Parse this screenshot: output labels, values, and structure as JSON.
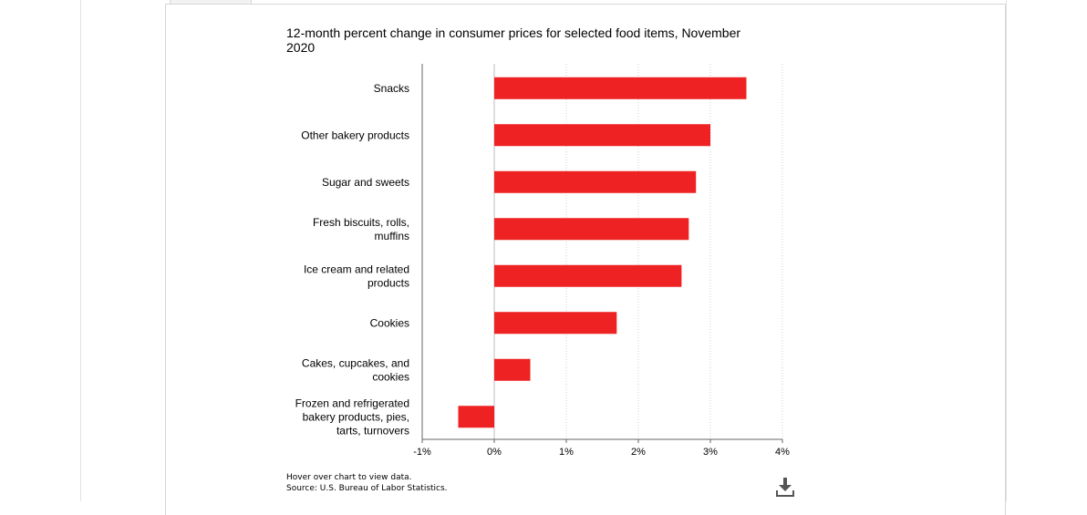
{
  "chart_data": {
    "type": "bar",
    "orientation": "horizontal",
    "title": "12-month percent change in consumer prices for selected food items, November 2020",
    "categories": [
      "Snacks",
      "Other bakery products",
      "Sugar and sweets",
      "Fresh biscuits, rolls, muffins",
      "Ice cream and related products",
      "Cookies",
      "Cakes, cupcakes, and cookies",
      "Frozen and refrigerated bakery products, pies, tarts, turnovers"
    ],
    "category_lines": [
      [
        "Snacks"
      ],
      [
        "Other bakery products"
      ],
      [
        "Sugar and sweets"
      ],
      [
        "Fresh biscuits, rolls,",
        "muffins"
      ],
      [
        "Ice cream and related",
        "products"
      ],
      [
        "Cookies"
      ],
      [
        "Cakes, cupcakes, and",
        "cookies"
      ],
      [
        "Frozen and refrigerated",
        "bakery products, pies,",
        "tarts, turnovers"
      ]
    ],
    "values": [
      3.5,
      3.0,
      2.8,
      2.7,
      2.6,
      1.7,
      0.5,
      -0.5
    ],
    "xlim": [
      -1,
      4
    ],
    "ticks": [
      -1,
      0,
      1,
      2,
      3,
      4
    ],
    "tick_labels": [
      "-1%",
      "0%",
      "1%",
      "2%",
      "3%",
      "4%"
    ],
    "grid": true,
    "bar_color": "#ee2222"
  },
  "notes": {
    "hover": "Hover over chart to view data.",
    "source": "Source: U.S. Bureau of Labor Statistics."
  },
  "icons": {
    "download": "download-icon"
  }
}
